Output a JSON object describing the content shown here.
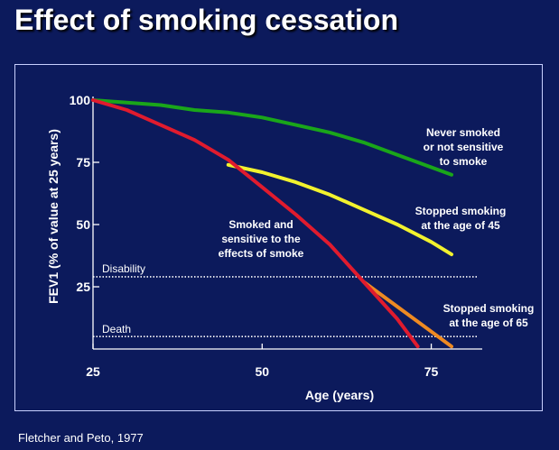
{
  "title": "Effect of smoking cessation",
  "source": "Fletcher and  Peto, 1977",
  "chart_data": {
    "type": "line",
    "xlabel": "Age (years)",
    "ylabel": "FEV1 (% of value at 25 years)",
    "xlim": [
      25,
      82
    ],
    "ylim": [
      0,
      100
    ],
    "xticks": [
      25,
      50,
      75
    ],
    "yticks": [
      25,
      50,
      75,
      100
    ],
    "grid": false,
    "reference_lines": [
      {
        "label": "Disability",
        "y": 29,
        "style": "dotted"
      },
      {
        "label": "Death",
        "y": 5,
        "style": "dotted"
      }
    ],
    "series": [
      {
        "name": "Never smoked or not sensitive to smoke",
        "color": "#1aa61a",
        "x": [
          25,
          30,
          35,
          40,
          45,
          50,
          55,
          60,
          65,
          70,
          75,
          78
        ],
        "y": [
          100,
          99,
          98,
          96,
          95,
          93,
          90,
          87,
          83,
          78,
          73,
          70
        ]
      },
      {
        "name": "Stopped smoking at the age of 45",
        "color": "#f2f22e",
        "x": [
          45,
          50,
          55,
          60,
          65,
          70,
          75,
          78
        ],
        "y": [
          74,
          71,
          67,
          62,
          56,
          50,
          43,
          38
        ]
      },
      {
        "name": "Smoked and sensitive to the effects of smoke",
        "color": "#e01b2e",
        "x": [
          25,
          30,
          35,
          40,
          45,
          50,
          55,
          60,
          65,
          70,
          73
        ],
        "y": [
          100,
          96,
          90,
          84,
          76,
          65,
          54,
          42,
          27,
          12,
          1
        ]
      },
      {
        "name": "Stopped smoking at the age of 65",
        "color": "#ee8a22",
        "x": [
          65,
          70,
          75,
          78
        ],
        "y": [
          27,
          17,
          7,
          1
        ]
      }
    ],
    "annotations": [
      {
        "lines": [
          "Never smoked",
          "or not sensitive",
          "to smoke"
        ]
      },
      {
        "lines": [
          "Stopped smoking",
          "at the age of 45"
        ]
      },
      {
        "lines": [
          "Smoked and",
          "sensitive to the",
          "effects of smoke"
        ]
      },
      {
        "lines": [
          "Stopped smoking",
          "at the age of 65"
        ]
      }
    ]
  }
}
